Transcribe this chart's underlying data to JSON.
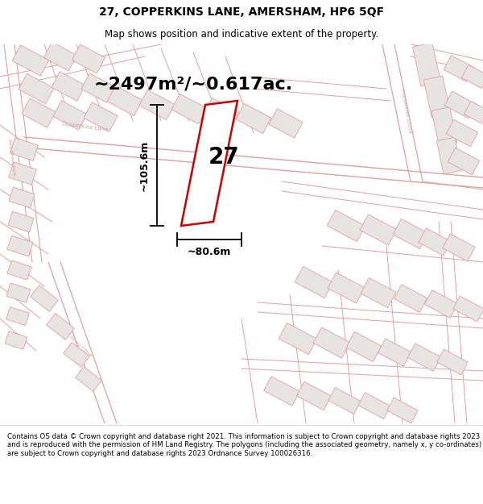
{
  "title_line1": "27, COPPERKINS LANE, AMERSHAM, HP6 5QF",
  "title_line2": "Map shows position and indicative extent of the property.",
  "area_text": "~2497m²/~0.617ac.",
  "label_number": "27",
  "dim_width": "~80.6m",
  "dim_height": "~105.6m",
  "footer_text": "Contains OS data © Crown copyright and database right 2021. This information is subject to Crown copyright and database rights 2023 and is reproduced with the permission of HM Land Registry. The polygons (including the associated geometry, namely x, y co-ordinates) are subject to Crown copyright and database rights 2023 Ordnance Survey 100026316.",
  "map_bg": "#f8f4f4",
  "bldg_face": "#e8e4e4",
  "bldg_edge": "#e0a0a0",
  "road_color": "#e0a0a0",
  "plot_color": "#cc0000",
  "dim_color": "#000000",
  "text_color": "#000000",
  "road_text_color": "#c8a0a0",
  "title_fontsize": 10,
  "subtitle_fontsize": 8.5,
  "area_fontsize": 16,
  "label_fontsize": 20,
  "dim_fontsize": 9,
  "footer_fontsize": 6.2
}
